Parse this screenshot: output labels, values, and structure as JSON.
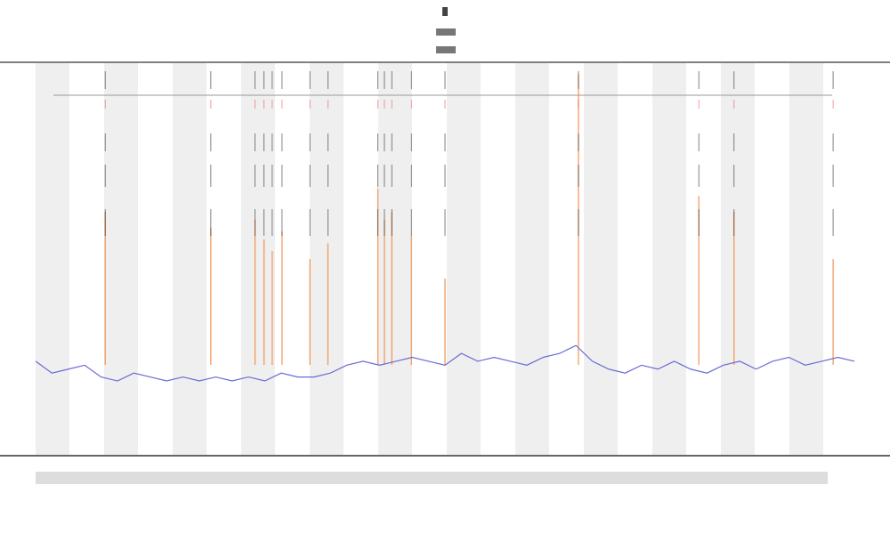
{
  "chart_data": {
    "type": "line",
    "xlim": [
      0,
      100
    ],
    "ylim": [
      0,
      100
    ],
    "series": [
      {
        "color": "#6b6bd6",
        "x": [
          0,
          2,
          4,
          6,
          8,
          10,
          12,
          14,
          16,
          18,
          20,
          22,
          24,
          26,
          28,
          30,
          32,
          34,
          36,
          38,
          40,
          42,
          44,
          46,
          48,
          50,
          52,
          54,
          56,
          58,
          60,
          62,
          64,
          66,
          68,
          70,
          72,
          74,
          76,
          78,
          80,
          82,
          84,
          86,
          88,
          90,
          92,
          94,
          96,
          98,
          100
        ],
        "values": [
          24,
          21,
          22,
          23,
          20,
          19,
          21,
          20,
          19,
          20,
          19,
          20,
          19,
          20,
          19,
          21,
          20,
          20,
          21,
          23,
          24,
          23,
          24,
          25,
          24,
          23,
          26,
          24,
          25,
          24,
          23,
          25,
          26,
          28,
          24,
          22,
          21,
          23,
          22,
          24,
          22,
          21,
          23,
          24,
          22,
          24,
          25,
          23,
          24,
          25,
          24
        ]
      }
    ],
    "spikes": {
      "color": "#f07a2a",
      "x": [
        8.5,
        21.4,
        26.8,
        27.9,
        28.9,
        30.1,
        33.5,
        35.7,
        41.8,
        42.6,
        43.5,
        45.9,
        50,
        66.3,
        81,
        85.3,
        97.4
      ],
      "values": [
        62,
        58,
        60,
        55,
        52,
        57,
        50,
        54,
        68,
        60,
        62,
        56,
        45,
        97,
        66,
        62,
        50
      ]
    }
  }
}
